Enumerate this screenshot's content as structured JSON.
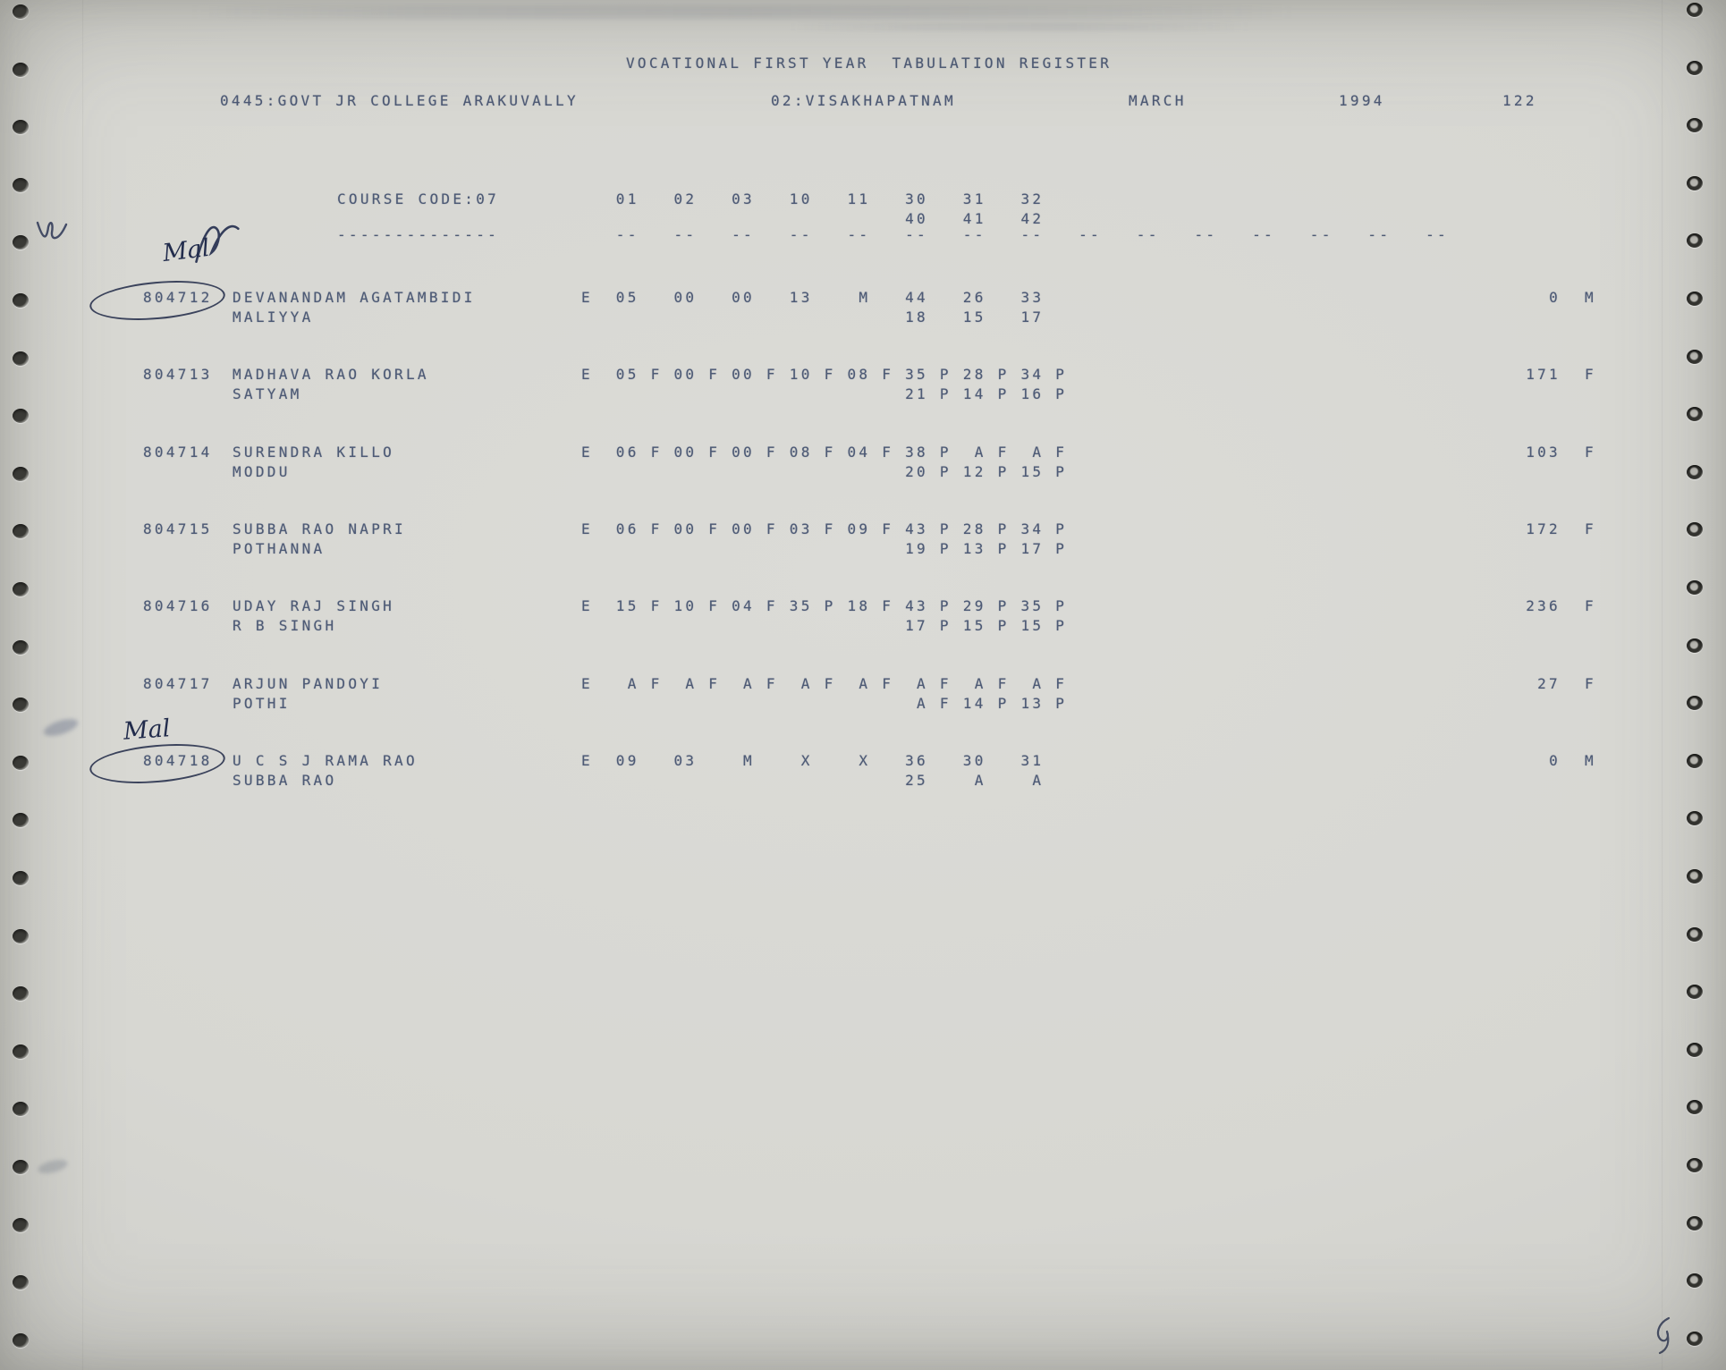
{
  "colors": {
    "print_ink": "#4d5a75",
    "pen_ink": "#222c4c",
    "paper": "#d7d7d2"
  },
  "document": {
    "title": "VOCATIONAL FIRST YEAR  TABULATION REGISTER",
    "college": "0445:GOVT JR COLLEGE ARAKUVALLY",
    "district": "02:VISAKHAPATNAM",
    "month": "MARCH",
    "year": "1994",
    "page_no": "122",
    "course_label": "COURSE CODE:07",
    "subject_codes_line1": "   01   02   03   10   11   30   31   32",
    "subject_codes_line2": "                            40   41   42",
    "underline_left": "--------------",
    "underline_cols": "   --   --   --   --   --   --   --   --   --   --   --   --   --   --   --"
  },
  "rows": [
    {
      "reg_no": "804712",
      "name1": "DEVANANDAM AGATAMBIDI",
      "name2": "MALIYYA",
      "marks1": "E  05   00   00   13    M   44   26   33",
      "marks2": "                            18   15   17",
      "total": "0",
      "result": "M",
      "circled": true,
      "annotation": "Mal"
    },
    {
      "reg_no": "804713",
      "name1": "MADHAVA RAO KORLA",
      "name2": "SATYAM",
      "marks1": "E  05 F 00 F 00 F 10 F 08 F 35 P 28 P 34 P",
      "marks2": "                            21 P 14 P 16 P",
      "total": "171",
      "result": "F",
      "circled": false,
      "annotation": null
    },
    {
      "reg_no": "804714",
      "name1": "SURENDRA KILLO",
      "name2": "MODDU",
      "marks1": "E  06 F 00 F 00 F 08 F 04 F 38 P  A F  A F",
      "marks2": "                            20 P 12 P 15 P",
      "total": "103",
      "result": "F",
      "circled": false,
      "annotation": null
    },
    {
      "reg_no": "804715",
      "name1": "SUBBA RAO NAPRI",
      "name2": "POTHANNA",
      "marks1": "E  06 F 00 F 00 F 03 F 09 F 43 P 28 P 34 P",
      "marks2": "                            19 P 13 P 17 P",
      "total": "172",
      "result": "F",
      "circled": false,
      "annotation": null
    },
    {
      "reg_no": "804716",
      "name1": "UDAY RAJ SINGH",
      "name2": "R B SINGH",
      "marks1": "E  15 F 10 F 04 F 35 P 18 F 43 P 29 P 35 P",
      "marks2": "                            17 P 15 P 15 P",
      "total": "236",
      "result": "F",
      "circled": false,
      "annotation": null
    },
    {
      "reg_no": "804717",
      "name1": "ARJUN PANDOYI",
      "name2": "POTHI",
      "marks1": "E   A F  A F  A F  A F  A F  A F  A F  A F",
      "marks2": "                             A F 14 P 13 P",
      "total": "27",
      "result": "F",
      "circled": false,
      "annotation": null
    },
    {
      "reg_no": "804718",
      "name1": "U C S J RAMA RAO",
      "name2": "SUBBA RAO",
      "marks1": "E  09   03    M    X    X   36   30   31",
      "marks2": "                            25    A    A",
      "total": "0",
      "result": "M",
      "circled": true,
      "annotation": "Mal"
    }
  ]
}
